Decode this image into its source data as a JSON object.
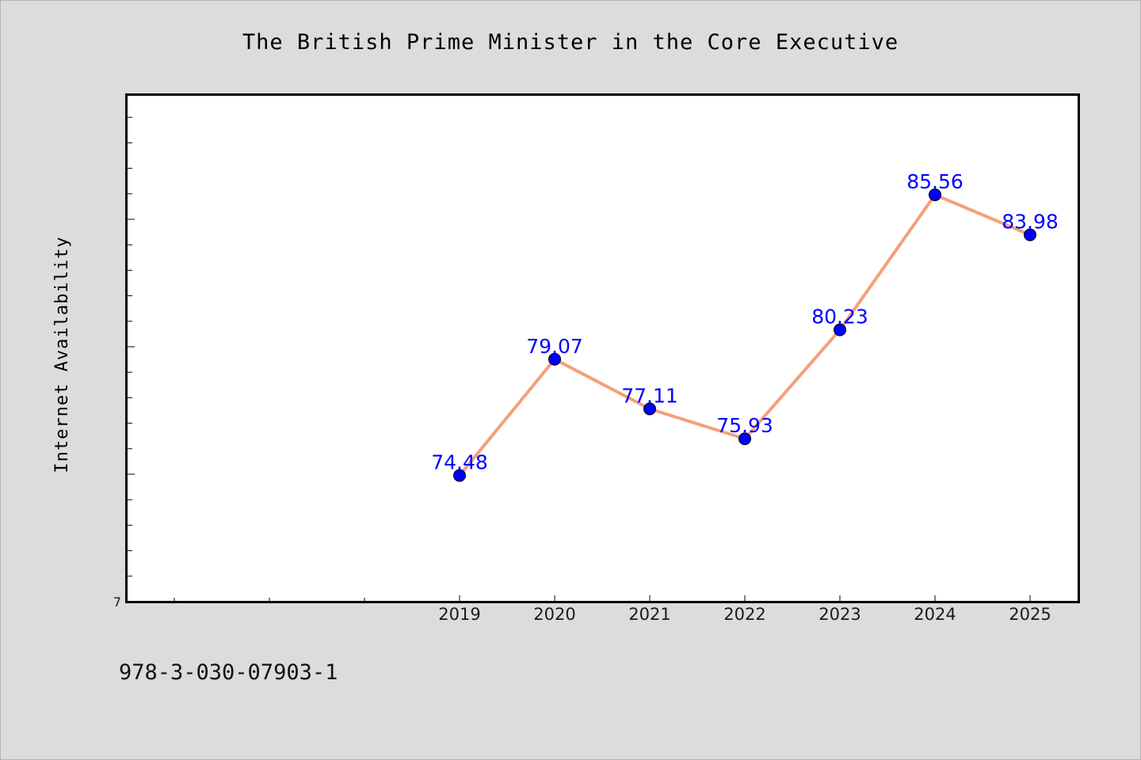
{
  "chart_data": {
    "type": "line",
    "title": "The British Prime Minister in the Core Executive",
    "xlabel": "",
    "ylabel": "Internet Availability",
    "categories": [
      "2019",
      "2020",
      "2021",
      "2022",
      "2023",
      "2024",
      "2025"
    ],
    "series": [
      {
        "values": [
          74.48,
          79.07,
          77.11,
          75.93,
          80.23,
          85.56,
          83.98
        ],
        "color": "#f4a07a",
        "marker_color": "#0000ff"
      }
    ],
    "data_labels": [
      "74.48",
      "79.07",
      "77.11",
      "75.93",
      "80.23",
      "85.56",
      "83.98"
    ],
    "ytick_labels": [
      "7"
    ],
    "ylim": [
      69.5,
      89.5
    ],
    "grid": false,
    "legend": "none",
    "label_color": "#0000ff"
  },
  "footer": {
    "text": "978-3-030-07903-1"
  }
}
